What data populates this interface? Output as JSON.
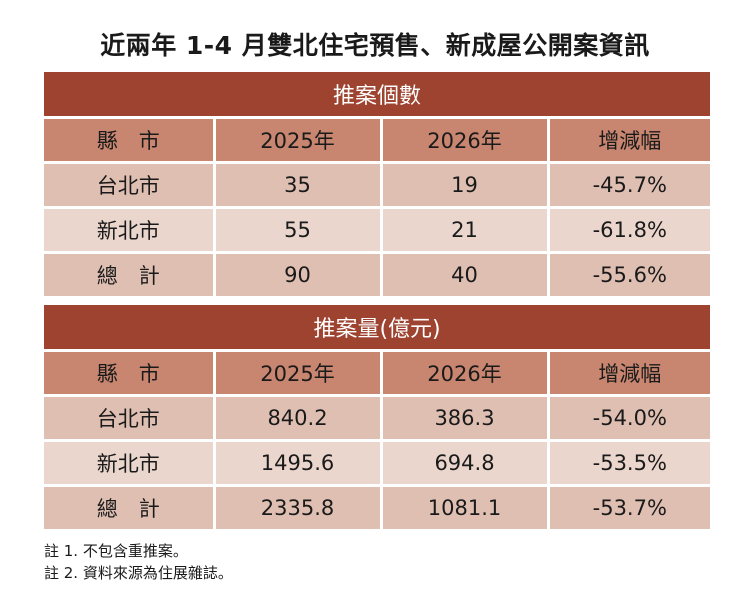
{
  "title": "近兩年 1-4 月雙北住宅預售、新成屋公開案資訊",
  "tables": [
    {
      "section_title": "推案個數",
      "columns": [
        "縣　市",
        "2025年",
        "2026年",
        "增減幅"
      ],
      "rows": [
        [
          "台北市",
          "35",
          "19",
          "-45.7%"
        ],
        [
          "新北市",
          "55",
          "21",
          "-61.8%"
        ],
        [
          "總　計",
          "90",
          "40",
          "-55.6%"
        ]
      ]
    },
    {
      "section_title": "推案量(億元)",
      "columns": [
        "縣　市",
        "2025年",
        "2026年",
        "增減幅"
      ],
      "rows": [
        [
          "台北市",
          "840.2",
          "386.3",
          "-54.0%"
        ],
        [
          "新北市",
          "1495.6",
          "694.8",
          "-53.5%"
        ],
        [
          "總　計",
          "2335.8",
          "1081.1",
          "-53.7%"
        ]
      ]
    }
  ],
  "notes": [
    "註 1. 不包含重推案。",
    "註 2. 資料來源為住展雜誌。"
  ],
  "colors": {
    "section_header": "#9e4330",
    "column_header": "#c88670",
    "row_odd": "#dfbfb2",
    "row_even": "#ead6cd"
  }
}
